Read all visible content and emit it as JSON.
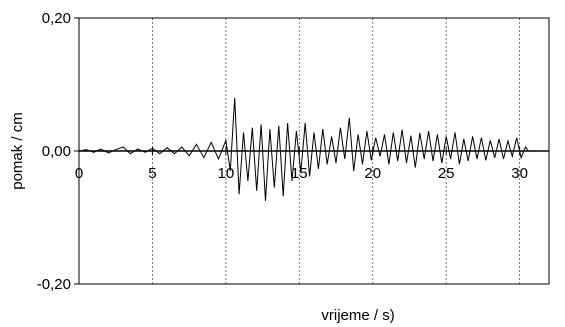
{
  "chart_data": {
    "type": "line",
    "title": "",
    "xlabel": "vrijeme / s)",
    "ylabel": "pomak / cm",
    "xlim": [
      0,
      32
    ],
    "ylim": [
      -0.2,
      0.2
    ],
    "x_ticks": [
      0,
      5,
      10,
      15,
      20,
      25,
      30
    ],
    "x_tick_labels": [
      "0",
      "5",
      "10",
      "15",
      "20",
      "25",
      "30"
    ],
    "y_ticks": [
      0.2,
      0,
      -0.2
    ],
    "y_tick_labels": [
      "0,20",
      "0,00",
      "-0,20"
    ],
    "grid": "vertical dashed at x ticks",
    "legend": "none",
    "line_color": "#000000",
    "series": [
      {
        "x": [
          0,
          0.5,
          1,
          1.5,
          2,
          2.5,
          3,
          3.5,
          4,
          4.5,
          5,
          5.5,
          6,
          6.5,
          7,
          7.5,
          8,
          8.5,
          9,
          9.5,
          10,
          10.3,
          10.6,
          10.9,
          11.2,
          11.5,
          11.8,
          12.1,
          12.4,
          12.7,
          13,
          13.3,
          13.6,
          13.9,
          14.2,
          14.5,
          14.8,
          15.1,
          15.4,
          15.7,
          16,
          16.3,
          16.6,
          16.9,
          17.2,
          17.5,
          17.8,
          18.1,
          18.4,
          18.7,
          19,
          19.3,
          19.6,
          19.9,
          20.2,
          20.5,
          20.8,
          21.1,
          21.4,
          21.7,
          22,
          22.3,
          22.6,
          22.9,
          23.2,
          23.5,
          23.8,
          24.1,
          24.4,
          24.7,
          25,
          25.3,
          25.6,
          25.9,
          26.2,
          26.5,
          26.8,
          27.1,
          27.4,
          27.7,
          28,
          28.3,
          28.6,
          28.9,
          29.2,
          29.5,
          29.8,
          30.1,
          30.4,
          30.6
        ],
        "values": [
          0,
          0.002,
          -0.002,
          0.003,
          -0.003,
          0.002,
          0.006,
          -0.004,
          0.003,
          -0.002,
          0.004,
          -0.004,
          0.005,
          -0.004,
          0.006,
          -0.007,
          0.01,
          -0.01,
          0.013,
          -0.012,
          0.016,
          -0.03,
          0.08,
          -0.065,
          0.028,
          -0.045,
          0.035,
          -0.06,
          0.04,
          -0.075,
          0.033,
          -0.055,
          0.038,
          -0.068,
          0.042,
          -0.045,
          0.03,
          -0.032,
          0.042,
          -0.038,
          0.028,
          -0.027,
          0.033,
          -0.02,
          0.022,
          -0.018,
          0.035,
          -0.012,
          0.05,
          -0.03,
          0.025,
          -0.02,
          0.03,
          -0.014,
          0.02,
          -0.008,
          0.025,
          -0.02,
          0.028,
          -0.015,
          0.032,
          -0.018,
          0.023,
          -0.025,
          0.027,
          -0.012,
          0.03,
          -0.015,
          0.025,
          -0.018,
          0.022,
          -0.012,
          0.028,
          -0.02,
          0.018,
          -0.015,
          0.022,
          -0.012,
          0.02,
          -0.014,
          0.016,
          -0.01,
          0.018,
          -0.012,
          0.015,
          -0.008,
          0.02,
          -0.01,
          0.006,
          0
        ]
      }
    ]
  }
}
